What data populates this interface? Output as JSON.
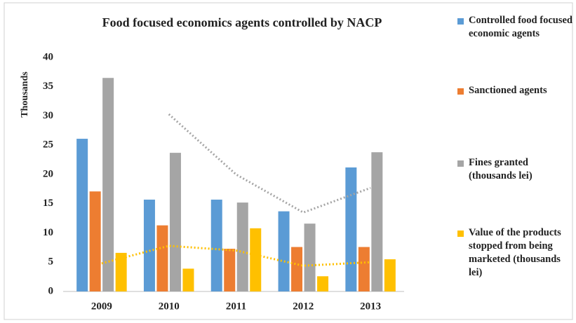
{
  "chart_data": {
    "type": "bar",
    "title": "Food focused economics agents controlled by NACP",
    "y_label": "Thousands",
    "categories": [
      "2009",
      "2010",
      "2011",
      "2012",
      "2013"
    ],
    "series": [
      {
        "name": "Controlled food focused economic agents",
        "color": "#5b9bd5",
        "values": [
          26.1,
          15.7,
          15.7,
          13.7,
          21.2
        ]
      },
      {
        "name": "Sanctioned agents",
        "color": "#ed7d31",
        "values": [
          17.1,
          11.3,
          7.3,
          7.6,
          7.6
        ]
      },
      {
        "name": "Fines granted (thousands lei)",
        "color": "#a5a5a5",
        "values": [
          36.5,
          23.7,
          15.2,
          11.6,
          23.8
        ]
      },
      {
        "name": "Value of the products stopped from being marketed (thousands lei)",
        "color": "#ffc000",
        "values": [
          6.6,
          3.9,
          10.8,
          2.6,
          5.5
        ]
      }
    ],
    "trendlines": [
      {
        "color": "#a5a5a5",
        "style": "dotted",
        "values": [
          null,
          30.3,
          20,
          13.5,
          17.7
        ]
      },
      {
        "color": "#ffc000",
        "style": "dotted",
        "values": [
          4.8,
          7.8,
          7.0,
          4.4,
          5.0
        ]
      }
    ],
    "ylim": [
      0,
      40
    ],
    "yticks": [
      0,
      5,
      10,
      15,
      20,
      25,
      30,
      35,
      40
    ],
    "grid": false,
    "legend": "right"
  }
}
